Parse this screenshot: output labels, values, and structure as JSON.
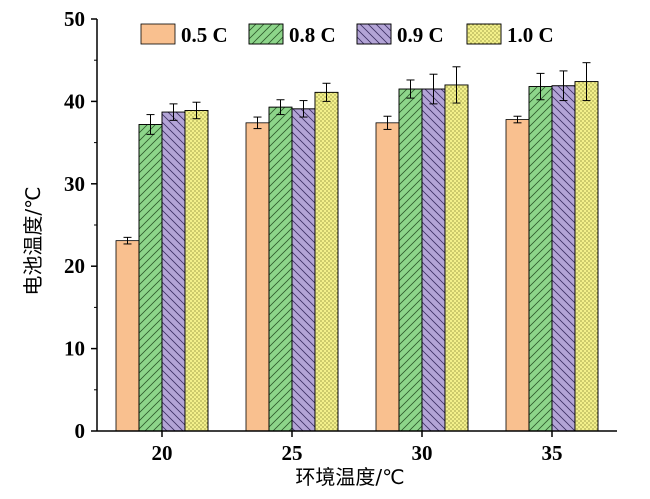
{
  "chart_data": {
    "type": "bar",
    "title": "",
    "xlabel": "环境温度/℃",
    "ylabel": "电池温度/℃",
    "categories": [
      "20",
      "25",
      "30",
      "35"
    ],
    "ylim": [
      0,
      50
    ],
    "yticks": [
      "0",
      "10",
      "20",
      "30",
      "40",
      "50"
    ],
    "legend_position": "top",
    "series": [
      {
        "name": "0.5 C",
        "color": "#f9c08f",
        "pattern": "none",
        "values": [
          23.1,
          37.4,
          37.4,
          37.8
        ],
        "errors": [
          0.4,
          0.7,
          0.8,
          0.4
        ]
      },
      {
        "name": "0.8 C",
        "color": "#8dd58a",
        "pattern": "diagonal-up",
        "values": [
          37.2,
          39.3,
          41.5,
          41.8
        ],
        "errors": [
          1.2,
          0.9,
          1.1,
          1.6
        ]
      },
      {
        "name": "0.9 C",
        "color": "#b3a4d6",
        "pattern": "diagonal-down",
        "values": [
          38.7,
          39.1,
          41.5,
          41.9
        ],
        "errors": [
          1.0,
          1.0,
          1.8,
          1.8
        ]
      },
      {
        "name": "1.0 C",
        "color": "#f3f08a",
        "pattern": "dots",
        "values": [
          38.9,
          41.1,
          42.0,
          42.4
        ],
        "errors": [
          1.0,
          1.1,
          2.2,
          2.3
        ]
      }
    ]
  }
}
